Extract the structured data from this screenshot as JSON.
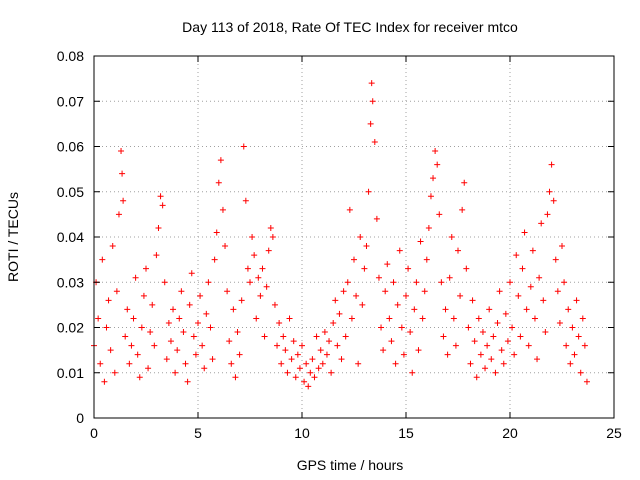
{
  "chart_data": {
    "type": "scatter",
    "title": "Day 113 of 2018, Rate Of TEC Index for receiver mtco",
    "xlabel": "GPS time / hours",
    "ylabel": "ROTI / TECUs",
    "xlim": [
      0,
      25
    ],
    "ylim": [
      0,
      0.08
    ],
    "xticks": [
      0,
      5,
      10,
      15,
      20,
      25
    ],
    "xtick_labels": [
      "0",
      "5",
      "10",
      "15",
      "20",
      "25"
    ],
    "yticks": [
      0,
      0.01,
      0.02,
      0.03,
      0.04,
      0.05,
      0.06,
      0.07,
      0.08
    ],
    "ytick_labels": [
      "0",
      "0.01",
      "0.02",
      "0.03",
      "0.04",
      "0.05",
      "0.06",
      "0.07",
      "0.08"
    ],
    "grid": true,
    "marker": "+",
    "color": "#ff0000",
    "series": [
      {
        "name": "ROTI",
        "points": [
          [
            0.0,
            0.016
          ],
          [
            0.1,
            0.03
          ],
          [
            0.2,
            0.022
          ],
          [
            0.3,
            0.012
          ],
          [
            0.4,
            0.035
          ],
          [
            0.5,
            0.008
          ],
          [
            0.6,
            0.02
          ],
          [
            0.7,
            0.026
          ],
          [
            0.8,
            0.015
          ],
          [
            0.9,
            0.038
          ],
          [
            1.0,
            0.01
          ],
          [
            1.1,
            0.028
          ],
          [
            1.2,
            0.045
          ],
          [
            1.3,
            0.059
          ],
          [
            1.35,
            0.054
          ],
          [
            1.4,
            0.048
          ],
          [
            1.5,
            0.018
          ],
          [
            1.6,
            0.024
          ],
          [
            1.7,
            0.012
          ],
          [
            1.8,
            0.016
          ],
          [
            1.9,
            0.022
          ],
          [
            2.0,
            0.031
          ],
          [
            2.1,
            0.014
          ],
          [
            2.2,
            0.009
          ],
          [
            2.3,
            0.02
          ],
          [
            2.4,
            0.027
          ],
          [
            2.5,
            0.033
          ],
          [
            2.6,
            0.011
          ],
          [
            2.7,
            0.019
          ],
          [
            2.8,
            0.025
          ],
          [
            2.9,
            0.016
          ],
          [
            3.0,
            0.036
          ],
          [
            3.1,
            0.042
          ],
          [
            3.2,
            0.049
          ],
          [
            3.3,
            0.047
          ],
          [
            3.4,
            0.03
          ],
          [
            3.5,
            0.013
          ],
          [
            3.6,
            0.021
          ],
          [
            3.7,
            0.017
          ],
          [
            3.8,
            0.024
          ],
          [
            3.9,
            0.01
          ],
          [
            4.0,
            0.015
          ],
          [
            4.1,
            0.022
          ],
          [
            4.2,
            0.028
          ],
          [
            4.3,
            0.019
          ],
          [
            4.4,
            0.012
          ],
          [
            4.5,
            0.008
          ],
          [
            4.6,
            0.025
          ],
          [
            4.7,
            0.032
          ],
          [
            4.8,
            0.018
          ],
          [
            4.9,
            0.014
          ],
          [
            5.0,
            0.021
          ],
          [
            5.1,
            0.027
          ],
          [
            5.2,
            0.016
          ],
          [
            5.3,
            0.011
          ],
          [
            5.4,
            0.023
          ],
          [
            5.5,
            0.03
          ],
          [
            5.6,
            0.02
          ],
          [
            5.7,
            0.013
          ],
          [
            5.8,
            0.035
          ],
          [
            5.9,
            0.041
          ],
          [
            6.0,
            0.052
          ],
          [
            6.1,
            0.057
          ],
          [
            6.2,
            0.046
          ],
          [
            6.3,
            0.038
          ],
          [
            6.4,
            0.028
          ],
          [
            6.5,
            0.017
          ],
          [
            6.6,
            0.012
          ],
          [
            6.7,
            0.024
          ],
          [
            6.8,
            0.009
          ],
          [
            6.9,
            0.019
          ],
          [
            7.0,
            0.014
          ],
          [
            7.1,
            0.026
          ],
          [
            7.2,
            0.06
          ],
          [
            7.3,
            0.048
          ],
          [
            7.4,
            0.033
          ],
          [
            7.5,
            0.03
          ],
          [
            7.6,
            0.04
          ],
          [
            7.7,
            0.036
          ],
          [
            7.8,
            0.022
          ],
          [
            7.9,
            0.031
          ],
          [
            8.0,
            0.027
          ],
          [
            8.1,
            0.033
          ],
          [
            8.2,
            0.018
          ],
          [
            8.3,
            0.029
          ],
          [
            8.4,
            0.037
          ],
          [
            8.5,
            0.042
          ],
          [
            8.6,
            0.04
          ],
          [
            8.7,
            0.025
          ],
          [
            8.8,
            0.016
          ],
          [
            8.9,
            0.021
          ],
          [
            9.0,
            0.012
          ],
          [
            9.1,
            0.018
          ],
          [
            9.2,
            0.015
          ],
          [
            9.3,
            0.01
          ],
          [
            9.4,
            0.022
          ],
          [
            9.5,
            0.013
          ],
          [
            9.6,
            0.017
          ],
          [
            9.7,
            0.009
          ],
          [
            9.8,
            0.014
          ],
          [
            9.9,
            0.011
          ],
          [
            10.0,
            0.016
          ],
          [
            10.1,
            0.008
          ],
          [
            10.2,
            0.012
          ],
          [
            10.3,
            0.007
          ],
          [
            10.4,
            0.01
          ],
          [
            10.5,
            0.013
          ],
          [
            10.6,
            0.009
          ],
          [
            10.7,
            0.018
          ],
          [
            10.8,
            0.011
          ],
          [
            10.9,
            0.015
          ],
          [
            11.0,
            0.012
          ],
          [
            11.1,
            0.019
          ],
          [
            11.2,
            0.014
          ],
          [
            11.3,
            0.017
          ],
          [
            11.4,
            0.01
          ],
          [
            11.5,
            0.021
          ],
          [
            11.6,
            0.026
          ],
          [
            11.7,
            0.016
          ],
          [
            11.8,
            0.023
          ],
          [
            11.9,
            0.013
          ],
          [
            12.0,
            0.028
          ],
          [
            12.1,
            0.018
          ],
          [
            12.2,
            0.03
          ],
          [
            12.3,
            0.046
          ],
          [
            12.4,
            0.022
          ],
          [
            12.5,
            0.035
          ],
          [
            12.6,
            0.027
          ],
          [
            12.7,
            0.012
          ],
          [
            12.8,
            0.04
          ],
          [
            12.9,
            0.025
          ],
          [
            13.0,
            0.033
          ],
          [
            13.1,
            0.038
          ],
          [
            13.2,
            0.05
          ],
          [
            13.3,
            0.065
          ],
          [
            13.35,
            0.074
          ],
          [
            13.4,
            0.07
          ],
          [
            13.5,
            0.061
          ],
          [
            13.6,
            0.044
          ],
          [
            13.7,
            0.031
          ],
          [
            13.8,
            0.02
          ],
          [
            13.9,
            0.015
          ],
          [
            14.0,
            0.028
          ],
          [
            14.1,
            0.034
          ],
          [
            14.2,
            0.022
          ],
          [
            14.3,
            0.017
          ],
          [
            14.4,
            0.03
          ],
          [
            14.5,
            0.012
          ],
          [
            14.6,
            0.025
          ],
          [
            14.7,
            0.037
          ],
          [
            14.8,
            0.02
          ],
          [
            14.9,
            0.014
          ],
          [
            15.0,
            0.027
          ],
          [
            15.1,
            0.033
          ],
          [
            15.2,
            0.019
          ],
          [
            15.3,
            0.01
          ],
          [
            15.4,
            0.024
          ],
          [
            15.5,
            0.03
          ],
          [
            15.6,
            0.015
          ],
          [
            15.7,
            0.039
          ],
          [
            15.8,
            0.022
          ],
          [
            15.9,
            0.028
          ],
          [
            16.0,
            0.035
          ],
          [
            16.1,
            0.042
          ],
          [
            16.2,
            0.049
          ],
          [
            16.3,
            0.053
          ],
          [
            16.4,
            0.059
          ],
          [
            16.5,
            0.056
          ],
          [
            16.6,
            0.045
          ],
          [
            16.7,
            0.03
          ],
          [
            16.8,
            0.018
          ],
          [
            16.9,
            0.024
          ],
          [
            17.0,
            0.014
          ],
          [
            17.1,
            0.031
          ],
          [
            17.2,
            0.04
          ],
          [
            17.3,
            0.022
          ],
          [
            17.4,
            0.016
          ],
          [
            17.5,
            0.037
          ],
          [
            17.6,
            0.027
          ],
          [
            17.7,
            0.046
          ],
          [
            17.8,
            0.052
          ],
          [
            17.9,
            0.033
          ],
          [
            18.0,
            0.02
          ],
          [
            18.1,
            0.012
          ],
          [
            18.2,
            0.026
          ],
          [
            18.3,
            0.017
          ],
          [
            18.4,
            0.009
          ],
          [
            18.5,
            0.022
          ],
          [
            18.6,
            0.014
          ],
          [
            18.7,
            0.019
          ],
          [
            18.8,
            0.011
          ],
          [
            18.9,
            0.016
          ],
          [
            19.0,
            0.024
          ],
          [
            19.1,
            0.013
          ],
          [
            19.2,
            0.018
          ],
          [
            19.3,
            0.01
          ],
          [
            19.4,
            0.021
          ],
          [
            19.5,
            0.028
          ],
          [
            19.6,
            0.015
          ],
          [
            19.7,
            0.012
          ],
          [
            19.8,
            0.023
          ],
          [
            19.9,
            0.017
          ],
          [
            20.0,
            0.03
          ],
          [
            20.1,
            0.02
          ],
          [
            20.2,
            0.014
          ],
          [
            20.3,
            0.036
          ],
          [
            20.4,
            0.027
          ],
          [
            20.5,
            0.018
          ],
          [
            20.6,
            0.033
          ],
          [
            20.7,
            0.041
          ],
          [
            20.8,
            0.024
          ],
          [
            20.9,
            0.016
          ],
          [
            21.0,
            0.029
          ],
          [
            21.1,
            0.037
          ],
          [
            21.2,
            0.022
          ],
          [
            21.3,
            0.013
          ],
          [
            21.4,
            0.031
          ],
          [
            21.5,
            0.043
          ],
          [
            21.6,
            0.026
          ],
          [
            21.7,
            0.019
          ],
          [
            21.8,
            0.045
          ],
          [
            21.9,
            0.05
          ],
          [
            22.0,
            0.056
          ],
          [
            22.1,
            0.048
          ],
          [
            22.2,
            0.035
          ],
          [
            22.3,
            0.028
          ],
          [
            22.4,
            0.021
          ],
          [
            22.5,
            0.038
          ],
          [
            22.6,
            0.03
          ],
          [
            22.7,
            0.016
          ],
          [
            22.8,
            0.024
          ],
          [
            22.9,
            0.012
          ],
          [
            23.0,
            0.02
          ],
          [
            23.1,
            0.014
          ],
          [
            23.2,
            0.026
          ],
          [
            23.3,
            0.018
          ],
          [
            23.4,
            0.01
          ],
          [
            23.5,
            0.022
          ],
          [
            23.6,
            0.016
          ],
          [
            23.7,
            0.008
          ]
        ]
      }
    ]
  }
}
